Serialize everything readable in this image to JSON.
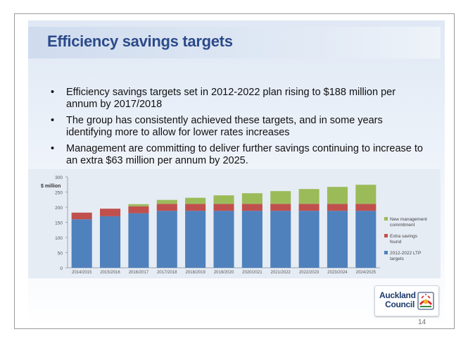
{
  "slide": {
    "title": "Efficiency savings targets",
    "bullets": [
      "Efficiency savings targets set in 2012-2022 plan rising to $188 million per annum by 2017/2018",
      "The group has consistently achieved these targets, and in some years identifying more to allow for lower rates increases",
      "Management are committing to deliver further savings continuing to increase to an extra $63 million per annum by 2025."
    ],
    "page_number": "14",
    "logo": {
      "line1": "Auckland",
      "line2": "Council"
    }
  },
  "colors": {
    "ltp": "#4f81bd",
    "extra": "#c0504d",
    "management": "#9bbb59",
    "title": "#2c4a8a"
  },
  "chart_data": {
    "type": "bar",
    "stacked": true,
    "title": "",
    "ylabel": "$ million",
    "xlabel": "",
    "ylim": [
      0,
      300
    ],
    "yticks": [
      0,
      50,
      100,
      150,
      200,
      250,
      300
    ],
    "categories": [
      "2014/2015",
      "2015/2016",
      "2016/2017",
      "2017/2018",
      "2018/2019",
      "2019/2020",
      "2020/2021",
      "2021/2022",
      "2022/2023",
      "2023/2024",
      "2024/2025"
    ],
    "series": [
      {
        "name": "2012-2022 LTP targets",
        "color": "#4f81bd",
        "values": [
          160,
          170,
          180,
          188,
          188,
          188,
          188,
          188,
          188,
          188,
          188
        ]
      },
      {
        "name": "Extra savings found",
        "color": "#c0504d",
        "values": [
          22,
          25,
          23,
          23,
          23,
          23,
          23,
          23,
          23,
          23,
          23
        ]
      },
      {
        "name": "New management commitment",
        "color": "#9bbb59",
        "values": [
          0,
          0,
          7,
          13,
          20,
          28,
          35,
          42,
          49,
          56,
          63
        ]
      }
    ],
    "legend": [
      {
        "label_lines": [
          "New management",
          "commitment"
        ],
        "color": "#9bbb59"
      },
      {
        "label_lines": [
          "Extra savings",
          "found"
        ],
        "color": "#c0504d"
      },
      {
        "label_lines": [
          "2012-2022 LTP",
          "targets"
        ],
        "color": "#4f81bd"
      }
    ],
    "legend_position": "right",
    "grid": false
  }
}
